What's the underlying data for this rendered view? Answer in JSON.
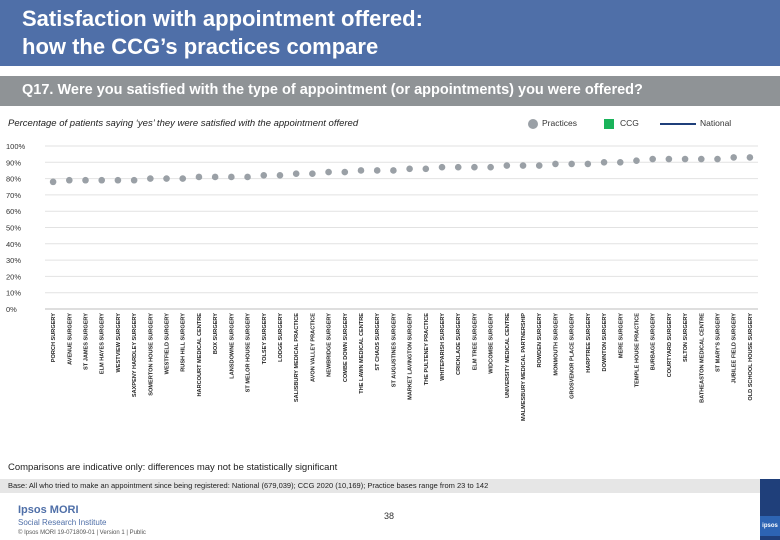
{
  "header": {
    "title_line1": "Satisfaction with appointment offered:",
    "title_line2": "how the CCG’s practices compare"
  },
  "question": "Q17. Were you satisfied with the type of appointment (or appointments) you were offered?",
  "subtitle": "Percentage of patients saying ‘yes’ they were satisfied with the appointment offered",
  "legend": [
    {
      "label": "Practices",
      "color": "#9aa0a6"
    },
    {
      "label": "CCG",
      "color": "#1ab35a"
    },
    {
      "label": "National",
      "color": "#1f3f7a"
    }
  ],
  "chart_data": {
    "type": "scatter",
    "title": "Percentage of patients saying ‘yes’ they were satisfied with the appointment offered",
    "xlabel": "",
    "ylabel": "",
    "ylim": [
      0,
      100
    ],
    "ytick_labels": [
      "0%",
      "10%",
      "20%",
      "30%",
      "40%",
      "50%",
      "60%",
      "70%",
      "80%",
      "90%",
      "100%"
    ],
    "categories": [
      "PORCH SURGERY",
      "AVENUE SURGERY",
      "ST JAMES SURGERY",
      "ELM HAYES SURGERY",
      "WESTVIEW SURGERY",
      "SAXPENY HARDLEY SURGERY",
      "SOMERTON HOUSE SURGERY",
      "WESTFIELD SURGERY",
      "RUSH HILL SURGERY",
      "HARCOURT MEDICAL CENTRE",
      "BOX SURGERY",
      "LANSDOWNE SURGERY",
      "ST MELOR HOUSE SURGERY",
      "TOLSEY SURGERY",
      "LODGE SURGERY",
      "SALISBURY MEDICAL PRACTICE",
      "AVON VALLEY PRACTICE",
      "NEWBRIDGE SURGERY",
      "COMBE DOWN SURGERY",
      "THE LAWN MEDICAL CENTRE",
      "ST CHADS SURGERY",
      "ST AUGUSTINES SURGERY",
      "MARKET LAVINGTON SURGERY",
      "THE PULTENEY PRACTICE",
      "WHITEPARISH SURGERY",
      "CRICKLADE SURGERY",
      "ELM TREE SURGERY",
      "WIDCOMBE SURGERY",
      "UNIVERSITY MEDICAL CENTRE",
      "MALMESBURY MEDICAL PARTNERSHIP",
      "ROWDEN SURGERY",
      "MONMOUTH SURGERY",
      "GROSVENOR PLACE SURGERY",
      "HARPTREE SURGERY",
      "DOWNTON SURGERY",
      "MERE SURGERY",
      "TEMPLE HOUSE PRACTICE",
      "BURBAGE SURGERY",
      "COURTYARD SURGERY",
      "SILTON SURGERY",
      "BATHEASTON MEDICAL CENTRE",
      "ST MARY'S SURGERY",
      "JUBILEE FIELD SURGERY",
      "OLD SCHOOL HOUSE SURGERY"
    ],
    "series": [
      {
        "name": "Practices",
        "values": [
          78,
          79,
          79,
          79,
          79,
          79,
          80,
          80,
          80,
          81,
          81,
          81,
          81,
          82,
          82,
          83,
          83,
          84,
          84,
          85,
          85,
          85,
          86,
          86,
          87,
          87,
          87,
          87,
          88,
          88,
          88,
          89,
          89,
          89,
          90,
          90,
          91,
          92,
          92,
          92,
          92,
          92,
          93,
          93
        ]
      }
    ],
    "reference_lines": []
  },
  "note": "Comparisons are indicative only: differences may not be statistically significant",
  "base_text": "Base: All who tried to make an appointment since being registered: National (679,039); CCG 2020 (10,169); Practice bases range from 23 to 142",
  "footer": {
    "brand": "Ipsos MORI",
    "brand_sub": "Social Research Institute",
    "meta": "© Ipsos MORI     19-071809-01 | Version 1 | Public",
    "page_number": "38",
    "logo_text": "ipsos"
  }
}
